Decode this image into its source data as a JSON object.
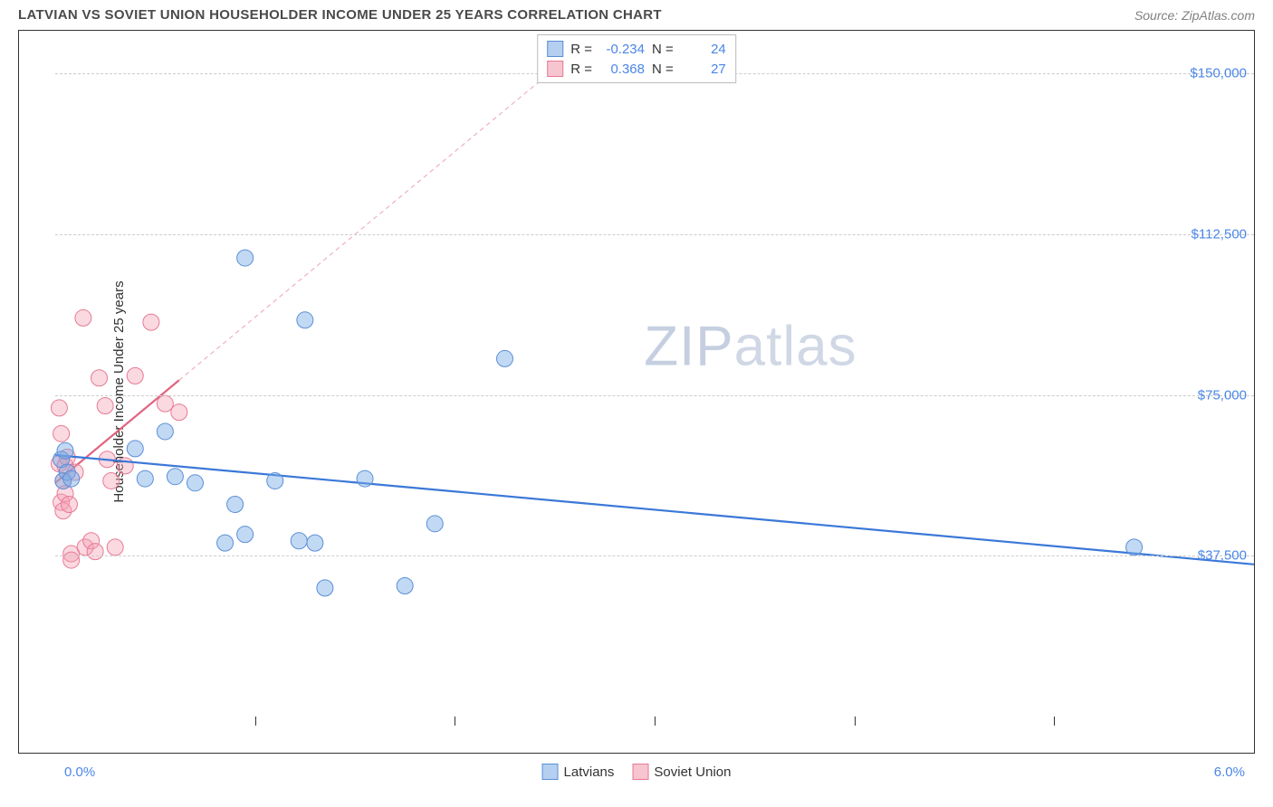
{
  "header": {
    "title": "LATVIAN VS SOVIET UNION HOUSEHOLDER INCOME UNDER 25 YEARS CORRELATION CHART",
    "source": "Source: ZipAtlas.com"
  },
  "watermark": {
    "zip": "ZIP",
    "atlas": "atlas"
  },
  "chart": {
    "type": "scatter",
    "background_color": "#ffffff",
    "grid_color": "#cccccc",
    "border_color": "#333333",
    "y_axis": {
      "label": "Householder Income Under 25 years",
      "min": 0,
      "max": 160000,
      "ticks": [
        37500,
        75000,
        112500,
        150000
      ],
      "tick_labels": [
        "$37,500",
        "$75,000",
        "$112,500",
        "$150,000"
      ],
      "label_color": "#4a86e8",
      "label_fontsize": 15
    },
    "x_axis": {
      "min": 0.0,
      "max": 6.0,
      "ticks": [
        0,
        1,
        2,
        3,
        4,
        5,
        6
      ],
      "left_label": "0.0%",
      "right_label": "6.0%",
      "label_color": "#4a86e8",
      "label_fontsize": 15
    },
    "series": [
      {
        "name": "Latvians",
        "fill_color": "rgba(120,170,230,0.45)",
        "stroke_color": "#5b8fd6",
        "marker_radius": 9,
        "R": "-0.234",
        "N": "24",
        "reg_line": {
          "x1": 0.0,
          "y1": 61000,
          "x2": 6.0,
          "y2": 35500,
          "solid_until_x": 6.0,
          "color_solid": "#3b78d8",
          "color_dash": "#a8c3ec"
        },
        "points": [
          [
            0.03,
            60000
          ],
          [
            0.04,
            55000
          ],
          [
            0.05,
            62000
          ],
          [
            0.06,
            57000
          ],
          [
            0.08,
            55500
          ],
          [
            0.4,
            62500
          ],
          [
            0.55,
            66500
          ],
          [
            0.45,
            55500
          ],
          [
            0.6,
            56000
          ],
          [
            0.7,
            54500
          ],
          [
            0.95,
            107000
          ],
          [
            0.85,
            40500
          ],
          [
            0.95,
            42500
          ],
          [
            0.9,
            49500
          ],
          [
            1.1,
            55000
          ],
          [
            1.22,
            41000
          ],
          [
            1.25,
            92500
          ],
          [
            1.3,
            40500
          ],
          [
            1.35,
            30000
          ],
          [
            1.55,
            55500
          ],
          [
            1.75,
            30500
          ],
          [
            1.9,
            45000
          ],
          [
            2.25,
            83500
          ],
          [
            5.4,
            39500
          ]
        ]
      },
      {
        "name": "Soviet Union",
        "fill_color": "rgba(245,160,180,0.4)",
        "stroke_color": "#e77a95",
        "marker_radius": 9,
        "R": "0.368",
        "N": "27",
        "reg_line": {
          "x1": 0.0,
          "y1": 54500,
          "x2": 2.6,
          "y2": 155000,
          "solid_until_x": 0.62,
          "color_solid": "#e0647f",
          "color_dash": "#f0b0bf"
        },
        "points": [
          [
            0.02,
            72000
          ],
          [
            0.02,
            59000
          ],
          [
            0.03,
            66000
          ],
          [
            0.03,
            50000
          ],
          [
            0.04,
            48000
          ],
          [
            0.04,
            55000
          ],
          [
            0.05,
            58500
          ],
          [
            0.05,
            52000
          ],
          [
            0.06,
            60500
          ],
          [
            0.07,
            49500
          ],
          [
            0.08,
            38000
          ],
          [
            0.08,
            36500
          ],
          [
            0.1,
            57000
          ],
          [
            0.14,
            93000
          ],
          [
            0.15,
            39500
          ],
          [
            0.18,
            41000
          ],
          [
            0.2,
            38500
          ],
          [
            0.22,
            79000
          ],
          [
            0.25,
            72500
          ],
          [
            0.26,
            60000
          ],
          [
            0.28,
            55000
          ],
          [
            0.3,
            39500
          ],
          [
            0.35,
            58500
          ],
          [
            0.4,
            79500
          ],
          [
            0.48,
            92000
          ],
          [
            0.55,
            73000
          ],
          [
            0.62,
            71000
          ]
        ]
      }
    ],
    "legend": {
      "items": [
        {
          "label": "Latvians",
          "swatch_fill": "#b5cff0",
          "swatch_border": "#5b8fd6"
        },
        {
          "label": "Soviet Union",
          "swatch_fill": "#f6c5d0",
          "swatch_border": "#e77a95"
        }
      ]
    },
    "corr_box": {
      "rows": [
        {
          "swatch_fill": "#b5cff0",
          "swatch_border": "#5b8fd6",
          "R_label": "R =",
          "R": "-0.234",
          "N_label": "N =",
          "N": "24"
        },
        {
          "swatch_fill": "#f6c5d0",
          "swatch_border": "#e77a95",
          "R_label": "R =",
          "R": "0.368",
          "N_label": "N =",
          "N": "27"
        }
      ]
    }
  }
}
